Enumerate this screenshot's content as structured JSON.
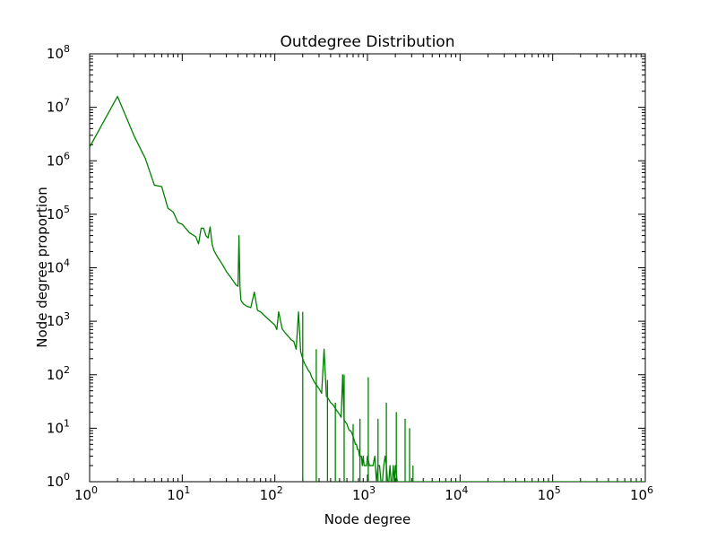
{
  "chart_data": {
    "type": "line",
    "title": "Outdegree Distribution",
    "xlabel": "Node degree",
    "ylabel": "Node degree proportion",
    "xscale": "log",
    "yscale": "log",
    "xlim": [
      1,
      1000000
    ],
    "ylim": [
      1,
      100000000
    ],
    "grid": false,
    "legend": "none",
    "x_ticks": [
      {
        "base": "10",
        "exp": "0",
        "value": 1
      },
      {
        "base": "10",
        "exp": "1",
        "value": 10
      },
      {
        "base": "10",
        "exp": "2",
        "value": 100
      },
      {
        "base": "10",
        "exp": "3",
        "value": 1000
      },
      {
        "base": "10",
        "exp": "4",
        "value": 10000
      },
      {
        "base": "10",
        "exp": "5",
        "value": 100000
      },
      {
        "base": "10",
        "exp": "6",
        "value": 1000000
      }
    ],
    "y_ticks": [
      {
        "base": "10",
        "exp": "0",
        "value": 1
      },
      {
        "base": "10",
        "exp": "1",
        "value": 10
      },
      {
        "base": "10",
        "exp": "2",
        "value": 100
      },
      {
        "base": "10",
        "exp": "3",
        "value": 1000
      },
      {
        "base": "10",
        "exp": "4",
        "value": 10000
      },
      {
        "base": "10",
        "exp": "5",
        "value": 100000
      },
      {
        "base": "10",
        "exp": "6",
        "value": 1000000
      },
      {
        "base": "10",
        "exp": "7",
        "value": 10000000
      },
      {
        "base": "10",
        "exp": "8",
        "value": 100000000
      }
    ],
    "series": [
      {
        "color": "#008000",
        "x": [
          1,
          2,
          3,
          4,
          5,
          6,
          7,
          8,
          9,
          10,
          12,
          14,
          15,
          16,
          17,
          18,
          19,
          20,
          21,
          22,
          24,
          26,
          28,
          30,
          33,
          36,
          38,
          40,
          41,
          42,
          43,
          44,
          46,
          50,
          55,
          60,
          65,
          70,
          80,
          90,
          100,
          105,
          110,
          120,
          130,
          140,
          150,
          160,
          170,
          180,
          190,
          200,
          210,
          220,
          230,
          240,
          250,
          260,
          270,
          280,
          300,
          320,
          340,
          360,
          380,
          400,
          420,
          440,
          460,
          480,
          500,
          520,
          540,
          560,
          580,
          600,
          620,
          640,
          660,
          680,
          700,
          720,
          740,
          760,
          780,
          800,
          820,
          840,
          860,
          880,
          900,
          920,
          940,
          960,
          980,
          1000,
          1050,
          1100,
          1150,
          1200,
          1250,
          1300,
          1350,
          1400,
          1450,
          1500,
          1550,
          1600,
          1650,
          1700,
          1750,
          1800,
          1850,
          1900,
          1950,
          2000,
          2100,
          2200,
          2300,
          2400,
          2500,
          2600,
          2700,
          2800,
          2900,
          3000,
          3100,
          3200,
          3300,
          3500,
          3700,
          4000,
          5000,
          10000,
          100000,
          1000000
        ],
        "y": [
          1800000,
          16000000,
          3000000,
          1100000,
          350000,
          330000,
          130000,
          110000,
          70000,
          65000,
          45000,
          38000,
          28000,
          55000,
          55000,
          40000,
          36000,
          58000,
          28000,
          21000,
          16000,
          13000,
          10500,
          8500,
          6800,
          5500,
          4800,
          4500,
          40000,
          4500,
          2500,
          2300,
          2100,
          1900,
          1800,
          3500,
          1600,
          1500,
          1200,
          1000,
          850,
          700,
          1500,
          720,
          600,
          520,
          450,
          420,
          300,
          1500,
          270,
          200,
          160,
          140,
          120,
          110,
          90,
          80,
          70,
          65,
          55,
          45,
          300,
          40,
          35,
          30,
          28,
          25,
          22,
          20,
          18,
          16,
          100,
          14,
          13,
          12,
          10,
          9,
          9,
          8,
          7,
          6,
          5,
          5,
          4,
          4,
          3,
          3,
          3,
          2,
          3,
          2,
          2,
          2,
          2,
          3,
          2,
          2,
          2,
          3,
          1,
          2,
          2,
          1,
          1,
          2,
          3,
          2,
          1,
          1,
          2,
          1,
          1,
          2,
          1,
          2,
          1,
          1,
          1,
          1,
          1,
          1,
          1,
          1,
          1,
          1,
          1,
          1,
          1,
          1,
          1,
          1,
          1,
          1,
          1,
          1
        ],
        "spikes": [
          {
            "x": 200,
            "y": 1500
          },
          {
            "x": 280,
            "y": 300
          },
          {
            "x": 370,
            "y": 80
          },
          {
            "x": 450,
            "y": 30
          },
          {
            "x": 560,
            "y": 100
          },
          {
            "x": 700,
            "y": 12
          },
          {
            "x": 830,
            "y": 15
          },
          {
            "x": 1020,
            "y": 90
          },
          {
            "x": 1300,
            "y": 15
          },
          {
            "x": 1600,
            "y": 30
          },
          {
            "x": 2050,
            "y": 20
          },
          {
            "x": 2550,
            "y": 15
          },
          {
            "x": 2850,
            "y": 10
          },
          {
            "x": 3100,
            "y": 2
          }
        ]
      }
    ]
  }
}
